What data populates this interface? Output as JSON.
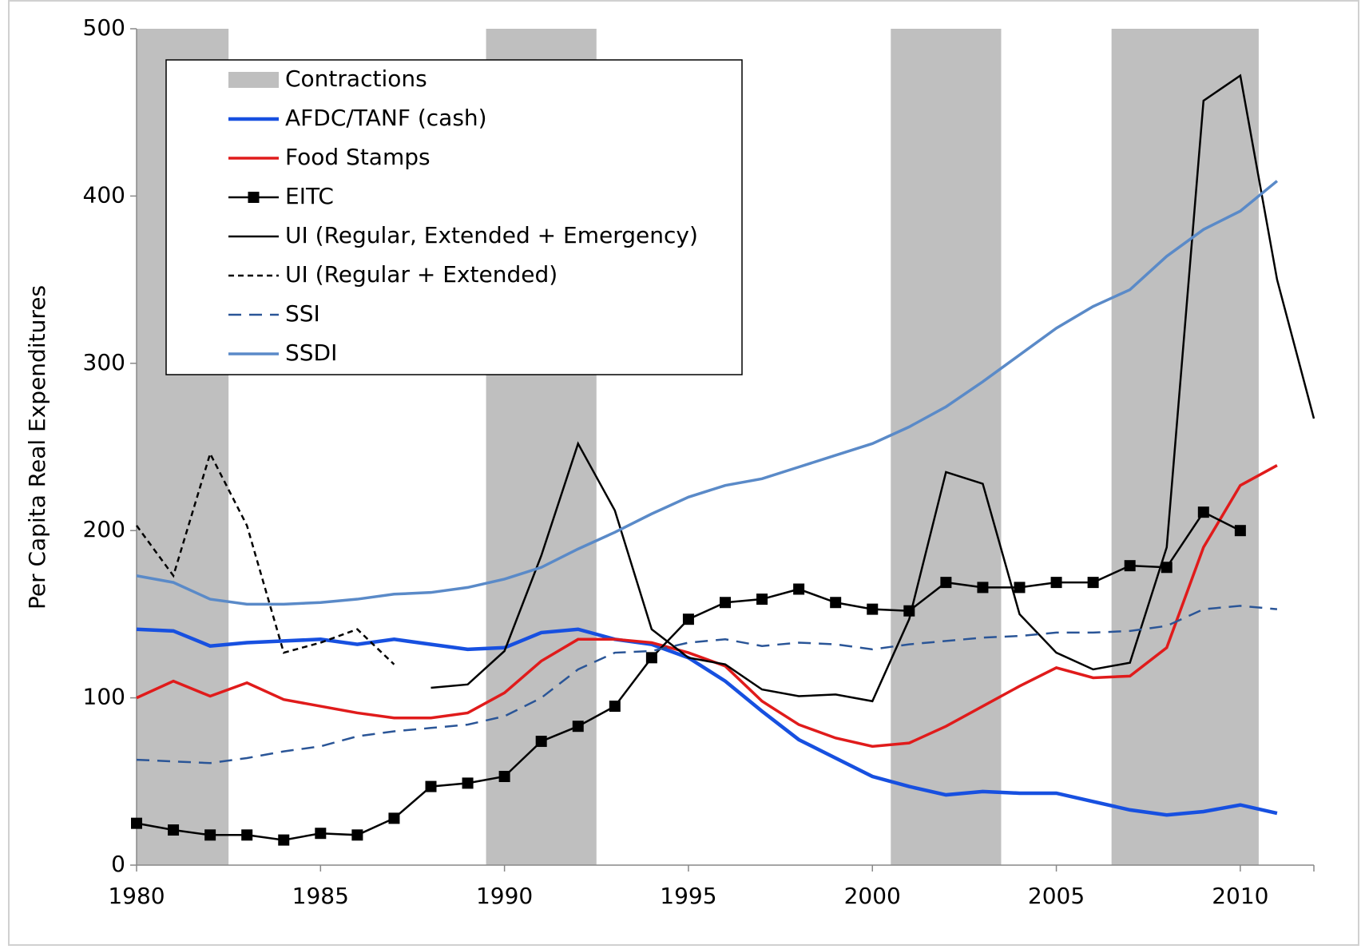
{
  "chart_data": {
    "type": "line",
    "ylabel": "Per Capita Real Expenditures",
    "x": [
      1980,
      1981,
      1982,
      1983,
      1984,
      1985,
      1986,
      1987,
      1988,
      1989,
      1990,
      1991,
      1992,
      1993,
      1994,
      1995,
      1996,
      1997,
      1998,
      1999,
      2000,
      2001,
      2002,
      2003,
      2004,
      2005,
      2006,
      2007,
      2008,
      2009,
      2010,
      2011,
      2012
    ],
    "xlim": [
      1980,
      2012
    ],
    "xticks": [
      1980,
      1985,
      1990,
      1995,
      2000,
      2005,
      2010
    ],
    "ylim": [
      0,
      500
    ],
    "yticks": [
      0,
      100,
      200,
      300,
      400,
      500
    ],
    "contractions_label": "Contractions",
    "contractions_color": "#bfbfbf",
    "contractions": [
      [
        1980,
        1982.5
      ],
      [
        1989.5,
        1992.5
      ],
      [
        2000.5,
        2003.5
      ],
      [
        2006.5,
        2010.5
      ]
    ],
    "legend": "upper left",
    "series": [
      {
        "name": "AFDC/TANF (cash)",
        "color": "#1750e0",
        "line_style": "solid",
        "values": [
          141,
          140,
          131,
          133,
          134,
          135,
          132,
          135,
          132,
          129,
          130,
          139,
          141,
          135,
          132,
          124,
          110,
          92,
          75,
          64,
          53,
          47,
          42,
          44,
          43,
          43,
          38,
          33,
          30,
          32,
          36,
          31,
          null
        ]
      },
      {
        "name": "Food Stamps",
        "color": "#e01b1b",
        "line_style": "solid",
        "values": [
          100,
          110,
          101,
          109,
          99,
          95,
          91,
          88,
          88,
          91,
          103,
          122,
          135,
          135,
          133,
          127,
          119,
          98,
          84,
          76,
          71,
          73,
          83,
          95,
          107,
          118,
          112,
          113,
          130,
          190,
          227,
          239,
          null
        ]
      },
      {
        "name": "EITC",
        "color": "#000000",
        "line_style": "solid",
        "marker": "square",
        "values": [
          25,
          21,
          18,
          18,
          15,
          19,
          18,
          28,
          47,
          49,
          53,
          74,
          83,
          95,
          124,
          147,
          157,
          159,
          165,
          157,
          153,
          152,
          169,
          166,
          166,
          169,
          169,
          179,
          178,
          211,
          200,
          null,
          null
        ]
      },
      {
        "name": "UI (Regular, Extended + Emergency)",
        "color": "#000000",
        "line_style": "solid",
        "values": [
          null,
          null,
          null,
          null,
          null,
          null,
          null,
          null,
          106,
          108,
          128,
          185,
          252,
          212,
          141,
          124,
          120,
          105,
          101,
          102,
          98,
          147,
          235,
          228,
          150,
          127,
          117,
          121,
          190,
          457,
          472,
          350,
          267
        ]
      },
      {
        "name": "UI (Regular + Extended)",
        "color": "#000000",
        "line_style": "short-dash",
        "values": [
          203,
          173,
          246,
          203,
          127,
          133,
          141,
          120,
          null,
          null,
          null,
          null,
          null,
          null,
          null,
          null,
          null,
          null,
          null,
          null,
          null,
          null,
          null,
          null,
          null,
          null,
          null,
          null,
          null,
          null,
          null,
          null,
          null
        ]
      },
      {
        "name": "SSI",
        "color": "#2a5597",
        "line_style": "long-dash",
        "values": [
          63,
          62,
          61,
          64,
          68,
          71,
          77,
          80,
          82,
          84,
          89,
          100,
          117,
          127,
          128,
          133,
          135,
          131,
          133,
          132,
          129,
          132,
          134,
          136,
          137,
          139,
          139,
          140,
          143,
          153,
          155,
          153,
          null
        ]
      },
      {
        "name": "SSDI",
        "color": "#5a8ac8",
        "line_style": "solid",
        "values": [
          173,
          169,
          159,
          156,
          156,
          157,
          159,
          162,
          163,
          166,
          171,
          178,
          189,
          199,
          210,
          220,
          227,
          231,
          238,
          245,
          252,
          262,
          274,
          289,
          305,
          321,
          334,
          344,
          364,
          380,
          391,
          409,
          null
        ]
      }
    ]
  }
}
